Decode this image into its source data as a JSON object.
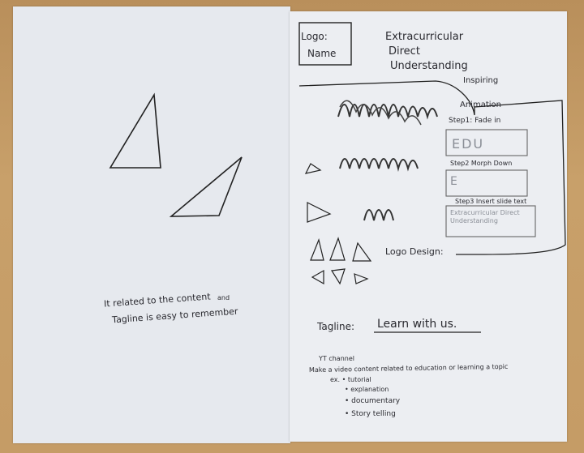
{
  "left_page": {
    "note_line1": "It related to the content",
    "note_line2": "Tagline is easy to remember",
    "note_insert": "and"
  },
  "right_page": {
    "logo_box": {
      "line1": "Logo:",
      "line2": "Name"
    },
    "name_lines": [
      "Extracurricular",
      "Direct",
      "Understanding"
    ],
    "inspiring": "Inspiring",
    "animation_title": "Animation",
    "steps": [
      {
        "label": "Step1: Fade in",
        "content": "EDU"
      },
      {
        "label": "Step2 Morph Down",
        "content": "E"
      },
      {
        "label": "Step3 Insert slide text",
        "content": "Extracurricular Direct Understanding"
      }
    ],
    "logo_design": "Logo Design:",
    "tagline_label": "Tagline:",
    "tagline_value": "Learn with us.",
    "yt_title": "YT channel",
    "yt_description": "Make a video content related to education or learning a topic",
    "ex_label": "ex. • tutorial",
    "bullets": [
      "explanation",
      "documentary",
      "Story telling"
    ]
  },
  "colors": {
    "ink": "#2a2a30",
    "paper": "#e9ecf1",
    "desk": "#c49a63"
  }
}
